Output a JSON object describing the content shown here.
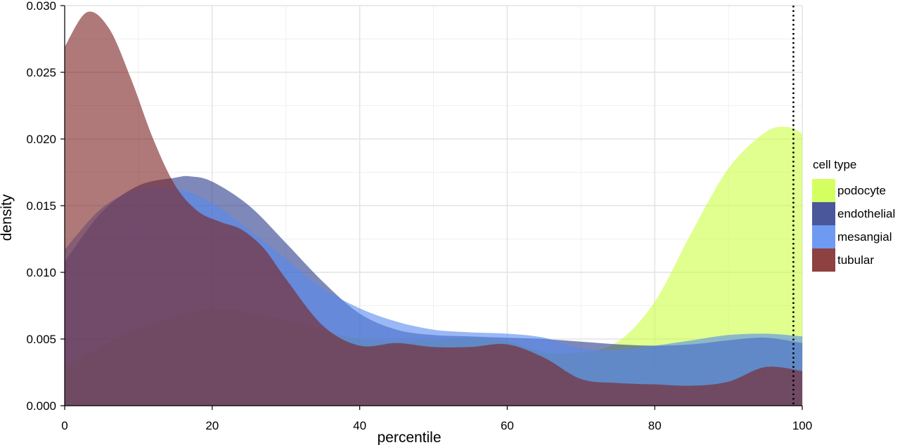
{
  "chart_data": {
    "type": "area",
    "xlabel": "percentile",
    "ylabel": "density",
    "xlim": [
      0,
      100
    ],
    "ylim": [
      0,
      0.03
    ],
    "x_ticks": [
      0,
      20,
      40,
      60,
      80,
      100
    ],
    "x_tick_labels": [
      "0",
      "20",
      "40",
      "60",
      "80",
      "100"
    ],
    "y_ticks": [
      0,
      0.005,
      0.01,
      0.015,
      0.02,
      0.025,
      0.03
    ],
    "y_tick_labels": [
      "0.000",
      "0.005",
      "0.010",
      "0.015",
      "0.020",
      "0.025",
      "0.030"
    ],
    "grid": true,
    "reference_line": {
      "x": 98.8,
      "style": "dotted"
    },
    "legend": {
      "title": "cell type",
      "placement": "right"
    },
    "series": [
      {
        "name": "podocyte",
        "color": "#ccff44",
        "x": [
          0,
          10,
          20,
          30,
          40,
          50,
          55,
          60,
          65,
          70,
          75,
          80,
          85,
          90,
          95,
          98,
          100
        ],
        "y": [
          0.0029,
          0.0058,
          0.0072,
          0.0064,
          0.005,
          0.0049,
          0.0051,
          0.0048,
          0.004,
          0.004,
          0.0048,
          0.0078,
          0.013,
          0.0178,
          0.0205,
          0.0209,
          0.0204
        ]
      },
      {
        "name": "endothelial",
        "color": "#2a3a8a",
        "x": [
          0,
          5,
          10,
          15,
          17,
          20,
          25,
          30,
          35,
          40,
          45,
          50,
          55,
          60,
          65,
          70,
          75,
          80,
          85,
          90,
          95,
          100
        ],
        "y": [
          0.0108,
          0.0145,
          0.0165,
          0.0171,
          0.0172,
          0.0168,
          0.015,
          0.0122,
          0.0093,
          0.0069,
          0.0057,
          0.0053,
          0.0052,
          0.0051,
          0.005,
          0.0048,
          0.0046,
          0.0045,
          0.0046,
          0.0049,
          0.0051,
          0.0047
        ]
      },
      {
        "name": "mesangial",
        "color": "#5588ee",
        "x": [
          0,
          5,
          10,
          15,
          20,
          25,
          30,
          35,
          40,
          45,
          50,
          55,
          60,
          65,
          70,
          75,
          80,
          85,
          90,
          95,
          100
        ],
        "y": [
          0.0117,
          0.0148,
          0.0162,
          0.0163,
          0.0152,
          0.0132,
          0.011,
          0.0088,
          0.0073,
          0.0063,
          0.0057,
          0.0055,
          0.0054,
          0.0051,
          0.0043,
          0.0042,
          0.0045,
          0.0049,
          0.0053,
          0.0054,
          0.0052
        ]
      },
      {
        "name": "tubular",
        "color": "#7a2020",
        "x": [
          0,
          3,
          6,
          9,
          12,
          15,
          18,
          21,
          24,
          27,
          30,
          35,
          40,
          45,
          50,
          55,
          60,
          65,
          70,
          75,
          80,
          85,
          90,
          95,
          100
        ],
        "y": [
          0.0269,
          0.0295,
          0.0283,
          0.0245,
          0.02,
          0.0165,
          0.0146,
          0.0138,
          0.0132,
          0.0118,
          0.0095,
          0.006,
          0.0045,
          0.0047,
          0.0044,
          0.0044,
          0.0046,
          0.0036,
          0.002,
          0.0017,
          0.0016,
          0.0015,
          0.0018,
          0.0029,
          0.0026
        ]
      }
    ]
  }
}
